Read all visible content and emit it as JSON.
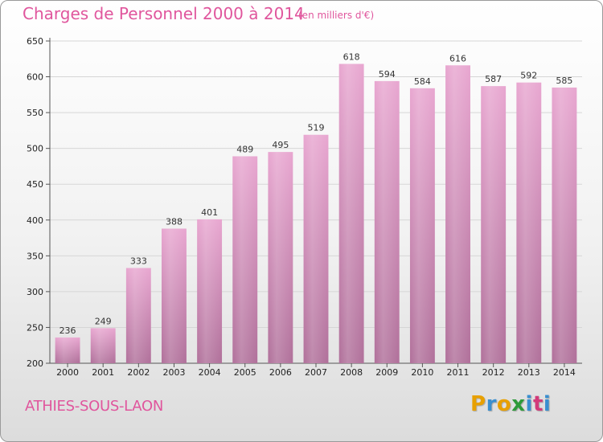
{
  "title": "Charges de Personnel 2000 à 2014",
  "subtitle": "(en milliers d'€)",
  "commune": "ATHIES-SOUS-LAON",
  "logo": {
    "letters": [
      "P",
      "r",
      "o",
      "x",
      "i",
      "t",
      "i"
    ],
    "colors": [
      "#e8a000",
      "#3a8fd0",
      "#e8a000",
      "#2e9b3a",
      "#3a8fd0",
      "#d23a7a",
      "#3a8fd0"
    ]
  },
  "colors": {
    "bar_top": "#e8a6d0",
    "bar_bottom": "#b0709a",
    "title": "#e0569d"
  },
  "chart_data": {
    "type": "bar",
    "categories": [
      "2000",
      "2001",
      "2002",
      "2003",
      "2004",
      "2005",
      "2006",
      "2007",
      "2008",
      "2009",
      "2010",
      "2011",
      "2012",
      "2013",
      "2014"
    ],
    "values": [
      236,
      249,
      333,
      388,
      401,
      489,
      495,
      519,
      618,
      594,
      584,
      616,
      587,
      592,
      585
    ],
    "labels": [
      "236",
      "249",
      "333",
      "388",
      "401",
      "489",
      "495",
      "519",
      "618",
      "594",
      "584",
      "616",
      "587",
      "592",
      "585"
    ],
    "yticks": [
      "200",
      "250",
      "300",
      "350",
      "400",
      "450",
      "500",
      "550",
      "600",
      "650"
    ],
    "ylim": [
      200,
      650
    ],
    "grid": true
  }
}
